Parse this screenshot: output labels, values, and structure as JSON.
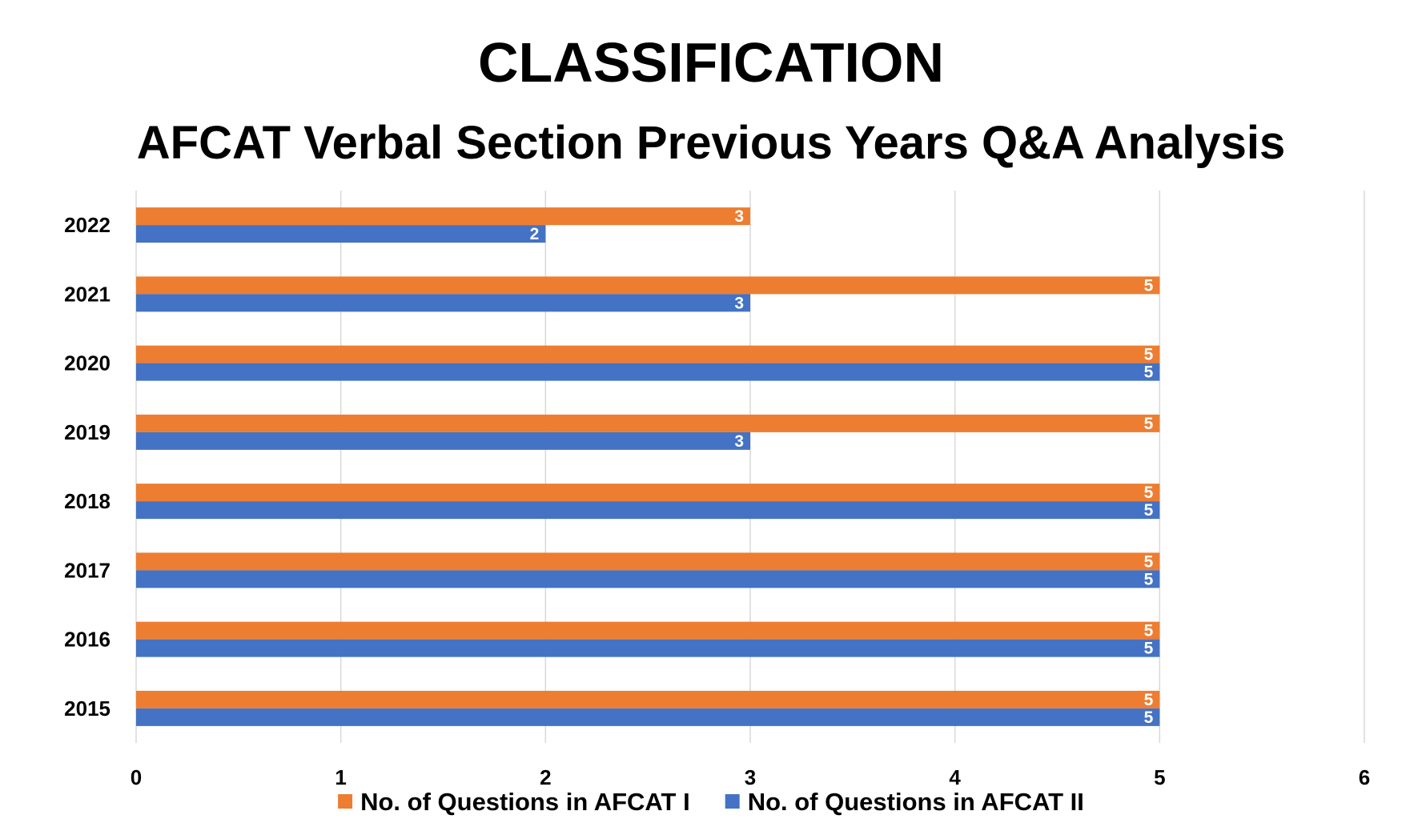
{
  "chart_data": {
    "type": "bar",
    "orientation": "horizontal",
    "title": "CLASSIFICATION",
    "subtitle": "AFCAT Verbal Section Previous Years Q&A Analysis",
    "categories": [
      "2022",
      "2021",
      "2020",
      "2019",
      "2018",
      "2017",
      "2016",
      "2015"
    ],
    "series": [
      {
        "name": "No. of Questions in AFCAT I",
        "color": "#ED7D31",
        "values": [
          3,
          5,
          5,
          5,
          5,
          5,
          5,
          5
        ]
      },
      {
        "name": "No. of Questions in AFCAT II",
        "color": "#4472C4",
        "values": [
          2,
          3,
          5,
          3,
          5,
          5,
          5,
          5
        ]
      }
    ],
    "xlim": [
      0,
      6
    ],
    "xticks": [
      "0",
      "1",
      "2",
      "3",
      "4",
      "5",
      "6"
    ],
    "xlabel": "",
    "ylabel": "",
    "grid": true,
    "gridColor": "#D9D9D9",
    "legend": "bottom"
  }
}
